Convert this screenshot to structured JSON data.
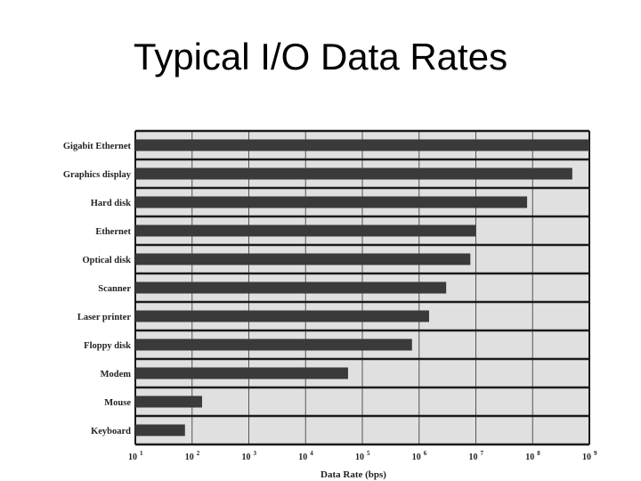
{
  "slide": {
    "title": "Typical I/O Data Rates"
  },
  "chart_data": {
    "type": "bar",
    "orientation": "horizontal",
    "scale": "log10",
    "categories": [
      "Gigabit Ethernet",
      "Graphics display",
      "Hard disk",
      "Ethernet",
      "Optical disk",
      "Scanner",
      "Laser printer",
      "Floppy disk",
      "Modem",
      "Mouse",
      "Keyboard"
    ],
    "values": [
      1000000000,
      500000000,
      80000000,
      10000000,
      8000000,
      3000000,
      1500000,
      750000,
      56000,
      150,
      75
    ],
    "xlabel": "Data Rate (bps)",
    "ylabel": "",
    "xlim": [
      10,
      1000000000
    ],
    "x_ticks": [
      {
        "base": "10",
        "exp": "1"
      },
      {
        "base": "10",
        "exp": "2"
      },
      {
        "base": "10",
        "exp": "3"
      },
      {
        "base": "10",
        "exp": "4"
      },
      {
        "base": "10",
        "exp": "5"
      },
      {
        "base": "10",
        "exp": "6"
      },
      {
        "base": "10",
        "exp": "7"
      },
      {
        "base": "10",
        "exp": "8"
      },
      {
        "base": "10",
        "exp": "9"
      }
    ],
    "grid": true,
    "colors": {
      "bar": "#3a3a3a",
      "plot_background": "#e0e0e0",
      "frame": "#1a1a1a",
      "gridline": "#555555"
    }
  }
}
